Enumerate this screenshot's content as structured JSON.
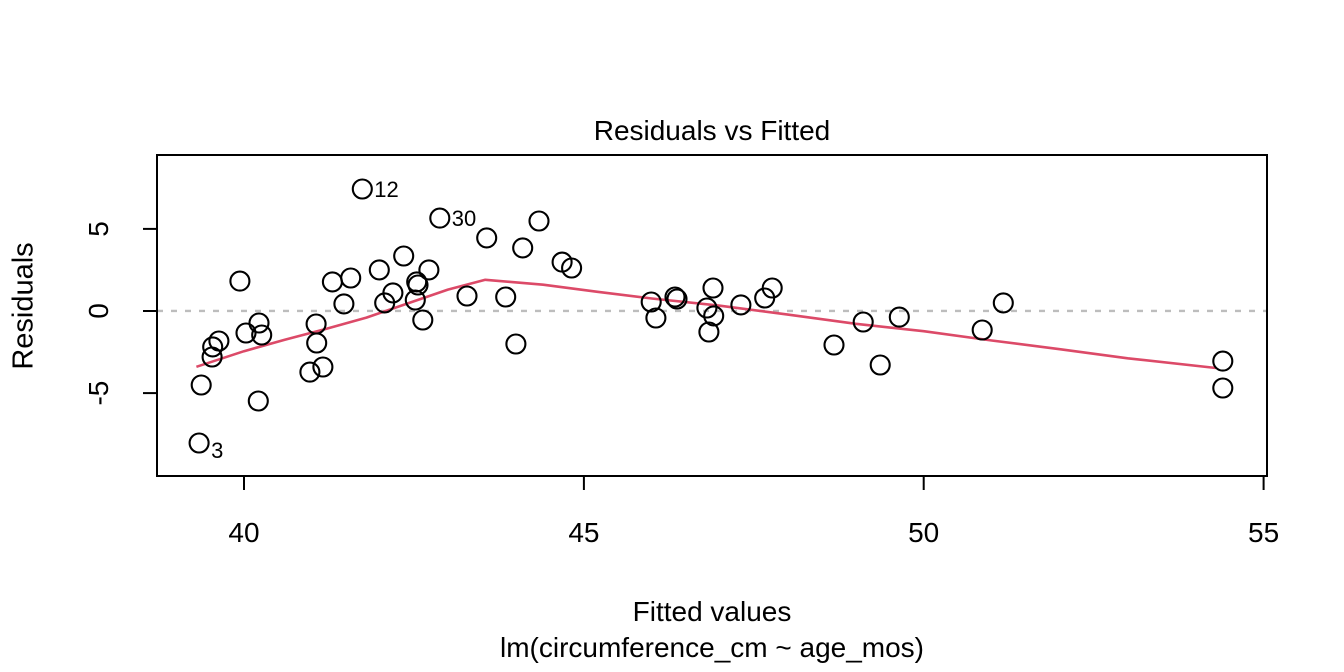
{
  "chart_data": {
    "type": "scatter",
    "title": "Residuals vs Fitted",
    "xlabel": "Fitted values",
    "sublabel": "lm(circumference_cm ~ age_mos)",
    "ylabel": "Residuals",
    "x_ticks": [
      40,
      45,
      50,
      55
    ],
    "y_ticks": [
      -5,
      0,
      5
    ],
    "x_range": [
      38.72,
      55.05
    ],
    "y_range": [
      -10.05,
      9.5
    ],
    "zero_line_y": 0,
    "grid": false,
    "colors": {
      "point_stroke": "#000000",
      "smoother": "#dc4a68",
      "zero_line": "#bdbdbd",
      "axis": "#000000"
    },
    "point_radius": 9.5,
    "points": [
      {
        "x": 39.34,
        "y": -8.04,
        "label": "3",
        "label_dy": 15
      },
      {
        "x": 39.37,
        "y": -4.51
      },
      {
        "x": 39.53,
        "y": -2.8
      },
      {
        "x": 39.54,
        "y": -2.19
      },
      {
        "x": 39.63,
        "y": -1.83
      },
      {
        "x": 39.94,
        "y": 1.82
      },
      {
        "x": 40.03,
        "y": -1.34
      },
      {
        "x": 40.22,
        "y": -0.73
      },
      {
        "x": 40.26,
        "y": -1.46
      },
      {
        "x": 40.21,
        "y": -5.48
      },
      {
        "x": 41.06,
        "y": -0.79
      },
      {
        "x": 41.07,
        "y": -1.95
      },
      {
        "x": 40.97,
        "y": -3.72
      },
      {
        "x": 41.16,
        "y": -3.41
      },
      {
        "x": 41.3,
        "y": 1.77
      },
      {
        "x": 41.47,
        "y": 0.43
      },
      {
        "x": 41.57,
        "y": 2.01
      },
      {
        "x": 41.74,
        "y": 7.43,
        "label": "12",
        "label_dy": 8
      },
      {
        "x": 41.99,
        "y": 2.5
      },
      {
        "x": 42.07,
        "y": 0.49
      },
      {
        "x": 42.19,
        "y": 1.1
      },
      {
        "x": 42.35,
        "y": 3.35
      },
      {
        "x": 42.52,
        "y": 0.67
      },
      {
        "x": 42.54,
        "y": 1.77
      },
      {
        "x": 42.56,
        "y": 1.58
      },
      {
        "x": 42.63,
        "y": -0.55
      },
      {
        "x": 42.72,
        "y": 2.5
      },
      {
        "x": 42.88,
        "y": 5.66,
        "label": "30",
        "label_dy": 8
      },
      {
        "x": 43.28,
        "y": 0.91
      },
      {
        "x": 43.57,
        "y": 4.45
      },
      {
        "x": 43.85,
        "y": 0.85
      },
      {
        "x": 44.0,
        "y": -2.01
      },
      {
        "x": 44.1,
        "y": 3.84
      },
      {
        "x": 44.34,
        "y": 5.48
      },
      {
        "x": 44.68,
        "y": 2.98
      },
      {
        "x": 44.82,
        "y": 2.62
      },
      {
        "x": 45.99,
        "y": 0.55
      },
      {
        "x": 46.06,
        "y": -0.43
      },
      {
        "x": 46.34,
        "y": 0.85
      },
      {
        "x": 46.37,
        "y": 0.73
      },
      {
        "x": 46.81,
        "y": 0.18
      },
      {
        "x": 46.84,
        "y": -1.28
      },
      {
        "x": 46.9,
        "y": 1.4
      },
      {
        "x": 46.91,
        "y": -0.3
      },
      {
        "x": 47.31,
        "y": 0.37
      },
      {
        "x": 47.66,
        "y": 0.79
      },
      {
        "x": 47.77,
        "y": 1.4
      },
      {
        "x": 48.68,
        "y": -2.07
      },
      {
        "x": 49.11,
        "y": -0.67
      },
      {
        "x": 49.36,
        "y": -3.29
      },
      {
        "x": 49.64,
        "y": -0.37
      },
      {
        "x": 50.86,
        "y": -1.16
      },
      {
        "x": 51.17,
        "y": 0.49
      },
      {
        "x": 54.4,
        "y": -3.05
      },
      {
        "x": 54.4,
        "y": -4.69
      }
    ],
    "smoother": [
      [
        39.3,
        -3.4
      ],
      [
        40.0,
        -2.45
      ],
      [
        40.6,
        -1.75
      ],
      [
        41.2,
        -1.1
      ],
      [
        41.8,
        -0.4
      ],
      [
        42.4,
        0.45
      ],
      [
        43.0,
        1.3
      ],
      [
        43.55,
        1.9
      ],
      [
        43.9,
        1.78
      ],
      [
        44.4,
        1.6
      ],
      [
        45.2,
        1.17
      ],
      [
        46.0,
        0.76
      ],
      [
        47.0,
        0.32
      ],
      [
        48.0,
        -0.22
      ],
      [
        49.0,
        -0.78
      ],
      [
        50.0,
        -1.23
      ],
      [
        51.0,
        -1.8
      ],
      [
        52.0,
        -2.33
      ],
      [
        53.0,
        -2.88
      ],
      [
        54.3,
        -3.47
      ]
    ],
    "legend": null
  }
}
